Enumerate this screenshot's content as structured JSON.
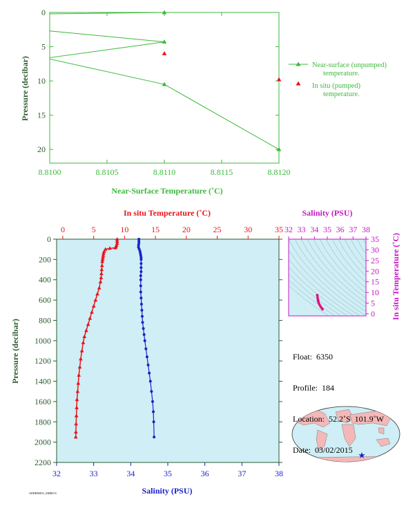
{
  "colors": {
    "green": "#3cb93c",
    "red": "#e8151b",
    "blue": "#1a22c8",
    "magenta": "#c418c4",
    "panel_bg": "#cfeef6",
    "dark_green": "#2b5a2b",
    "map_land": "#f4b8b8",
    "map_ocean": "#cfeef6"
  },
  "top_chart": {
    "xlabel": "Near-Surface Temperature (˚C)",
    "ylabel": "Pressure (decibar)",
    "xticks": [
      "8.8100",
      "8.8105",
      "8.8110",
      "8.8115",
      "8.8120"
    ],
    "yticks": [
      "0",
      "5",
      "10",
      "15",
      "20"
    ],
    "legend": {
      "unpumped_l1": "Near-surface (unpumped)",
      "unpumped_l2": "temperature.",
      "pumped_l1": "In situ (pumped)",
      "pumped_l2": "temperature."
    }
  },
  "main_chart": {
    "top_label": "In situ Temperature (˚C)",
    "bottom_label": "Salinity (PSU)",
    "ylabel": "Pressure (decibar)",
    "temp_ticks": [
      "0",
      "5",
      "10",
      "15",
      "20",
      "25",
      "30",
      "35"
    ],
    "sal_ticks": [
      "32",
      "33",
      "34",
      "35",
      "36",
      "37",
      "38"
    ],
    "pressure_ticks": [
      "0",
      "200",
      "400",
      "600",
      "800",
      "1000",
      "1200",
      "1400",
      "1600",
      "1800",
      "2000",
      "2200"
    ]
  },
  "ts_chart": {
    "top_label": "Salinity (PSU)",
    "right_label": "In situ Temperature (˚C)",
    "sal_ticks": [
      "32",
      "33",
      "34",
      "35",
      "36",
      "37",
      "38"
    ],
    "temp_ticks": [
      "0",
      "5",
      "10",
      "15",
      "20",
      "25",
      "30",
      "35"
    ]
  },
  "info": {
    "float": "Float:  6350",
    "profile": "Profile:  184",
    "location": "Location:  52.2˚S  101.9˚W",
    "date": "Date:  03/02/2015"
  },
  "footer_code": "ADDEBSDA_S5BBS74",
  "chart_data": [
    {
      "type": "line",
      "title": "",
      "xlabel": "Near-Surface Temperature (˚C)",
      "ylabel": "Pressure (decibar)",
      "xlim": [
        8.81,
        8.812
      ],
      "ylim": [
        22,
        0
      ],
      "series": [
        {
          "name": "Near-surface (unpumped) temperature.",
          "x": [
            8.811,
            8.81,
            8.81,
            8.811,
            8.81,
            8.81,
            8.811,
            8.812
          ],
          "y": [
            0.0,
            0.2,
            2.7,
            4.3,
            6.6,
            6.8,
            10.5,
            20.0
          ]
        },
        {
          "name": "In situ (pumped) temperature.",
          "x": [
            8.811,
            8.812
          ],
          "y": [
            6.0,
            9.8
          ]
        }
      ]
    },
    {
      "type": "line",
      "title": "",
      "xlabel": "Salinity (PSU)",
      "x2label": "In situ Temperature (˚C)",
      "ylabel": "Pressure (decibar)",
      "temp_lim": [
        -1,
        35
      ],
      "sal_lim": [
        32,
        38
      ],
      "ylim": [
        2200,
        0
      ],
      "series": [
        {
          "name": "In situ Temperature (˚C)",
          "x": [
            8.8,
            8.8,
            8.8,
            8.7,
            8.6,
            8.5,
            7.6,
            6.9,
            6.7,
            6.6,
            6.55,
            6.5,
            6.45,
            6.4,
            6.35,
            6.3,
            6.25,
            6.2,
            6.1,
            5.9,
            5.6,
            5.3,
            5.0,
            4.7,
            4.4,
            4.1,
            3.8,
            3.5,
            3.3,
            3.1,
            2.9,
            2.75,
            2.6,
            2.5,
            2.4,
            2.3,
            2.25,
            2.2,
            2.15,
            2.12,
            2.1
          ],
          "y": [
            0,
            20,
            40,
            60,
            75,
            85,
            90,
            100,
            120,
            140,
            160,
            180,
            200,
            220,
            260,
            300,
            340,
            380,
            420,
            480,
            540,
            600,
            660,
            720,
            780,
            840,
            900,
            960,
            1020,
            1100,
            1180,
            1260,
            1340,
            1420,
            1500,
            1580,
            1660,
            1740,
            1820,
            1900,
            1950
          ]
        },
        {
          "name": "Salinity (PSU)",
          "x": [
            34.22,
            34.22,
            34.22,
            34.21,
            34.21,
            34.23,
            34.25,
            34.26,
            34.27,
            34.28,
            34.28,
            34.28,
            34.28,
            34.28,
            34.27,
            34.27,
            34.27,
            34.27,
            34.28,
            34.29,
            34.3,
            34.31,
            34.32,
            34.34,
            34.36,
            34.38,
            34.41,
            34.44,
            34.47,
            34.5,
            34.53,
            34.56,
            34.59,
            34.61,
            34.62,
            34.63
          ],
          "y": [
            0,
            20,
            40,
            60,
            80,
            100,
            120,
            140,
            160,
            180,
            200,
            240,
            280,
            320,
            360,
            400,
            460,
            520,
            580,
            640,
            700,
            760,
            820,
            880,
            940,
            1000,
            1080,
            1160,
            1240,
            1320,
            1400,
            1500,
            1600,
            1700,
            1800,
            1950
          ]
        }
      ]
    },
    {
      "type": "scatter",
      "title": "",
      "xlabel": "Salinity (PSU)",
      "ylabel": "In situ Temperature (˚C)",
      "xlim": [
        32,
        38
      ],
      "ylim": [
        -1,
        35
      ],
      "series": [
        {
          "name": "T-S",
          "x": [
            34.22,
            34.22,
            34.25,
            34.27,
            34.28,
            34.28,
            34.27,
            34.28,
            34.3,
            34.32,
            34.36,
            34.41,
            34.47,
            34.53,
            34.59,
            34.63
          ],
          "y": [
            8.8,
            8.7,
            7.6,
            6.7,
            6.5,
            6.4,
            6.3,
            6.2,
            5.9,
            5.3,
            4.7,
            4.1,
            3.5,
            2.9,
            2.5,
            2.1
          ]
        }
      ]
    }
  ]
}
